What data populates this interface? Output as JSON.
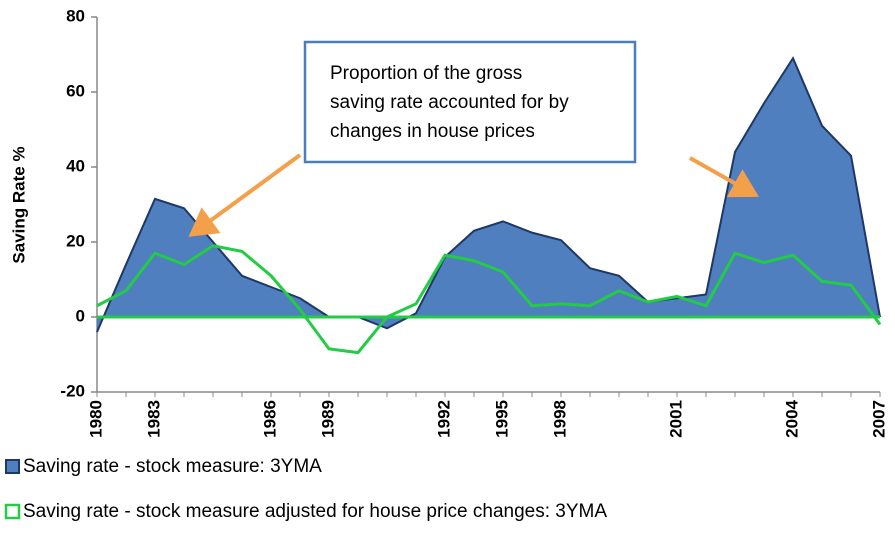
{
  "chart_data": {
    "type": "area",
    "y_label": "Saving Rate %",
    "annotation": [
      "Proportion of the gross",
      "saving rate accounted for by",
      "changes in house prices"
    ],
    "categories": [
      "1980",
      null,
      "1983",
      null,
      null,
      null,
      "1986",
      null,
      "1989",
      null,
      null,
      null,
      "1992",
      null,
      "1995",
      null,
      "1998",
      null,
      null,
      null,
      "2001",
      null,
      null,
      null,
      "2004",
      null,
      null,
      "2007"
    ],
    "series": [
      {
        "name": "Saving rate - stock measure: 3YMA",
        "color": "#4f7fbf",
        "values": [
          -4,
          14,
          31.5,
          29,
          20,
          11,
          8,
          5,
          0,
          0,
          -3,
          1,
          16,
          23,
          25.5,
          22.5,
          20.5,
          13,
          11,
          4,
          5,
          6,
          44,
          57,
          69,
          51,
          43,
          0
        ]
      },
      {
        "name": "Saving rate - stock measure adjusted for house price changes: 3YMA",
        "color": "#22cc44",
        "values": [
          3,
          7,
          17,
          14,
          19,
          17.5,
          11,
          2,
          -8.5,
          -9.5,
          0,
          3.5,
          16.5,
          15,
          12,
          3,
          3.5,
          3,
          7,
          4,
          5.5,
          3,
          17,
          14.5,
          16.5,
          9.5,
          8.5,
          -2
        ]
      }
    ],
    "ylim": [
      -20,
      80
    ],
    "yticks": [
      -20,
      0,
      20,
      40,
      60,
      80
    ]
  }
}
